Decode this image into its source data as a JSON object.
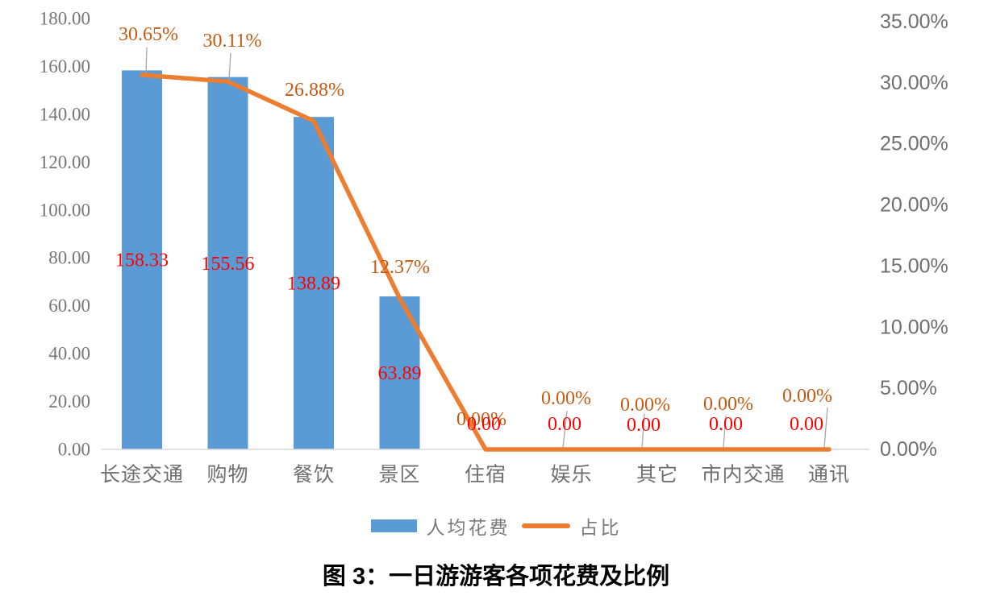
{
  "chart_data": {
    "type": "combo-bar-line",
    "title": "图 3：一日游游客各项花费及比例",
    "categories": [
      "长途交通",
      "购物",
      "餐饮",
      "景区",
      "住宿",
      "娱乐",
      "其它",
      "市内交通",
      "通讯"
    ],
    "series": [
      {
        "name": "人均花费",
        "type": "bar",
        "axis": "left",
        "values": [
          158.33,
          155.56,
          138.89,
          63.89,
          0,
          0,
          0,
          0,
          0
        ],
        "labels": [
          "158.33",
          "155.56",
          "138.89",
          "63.89",
          "0.00",
          "0.00",
          "0.00",
          "0.00",
          "0.00"
        ],
        "color": "#5B9BD5",
        "label_color": "#FF0000"
      },
      {
        "name": "占比",
        "type": "line",
        "axis": "right",
        "values": [
          30.65,
          30.11,
          26.88,
          12.37,
          0,
          0,
          0,
          0,
          0
        ],
        "labels": [
          "30.65%",
          "30.11%",
          "26.88%",
          "12.37%",
          "0.00%",
          "0.00%",
          "0.00%",
          "0.00%",
          "0.00%"
        ],
        "color": "#ED7D31",
        "label_color": "#C55A11"
      }
    ],
    "left_axis": {
      "min": 0,
      "max": 180,
      "step": 20,
      "tick_labels": [
        "0.00",
        "20.00",
        "40.00",
        "60.00",
        "80.00",
        "100.00",
        "120.00",
        "140.00",
        "160.00",
        "180.00"
      ]
    },
    "right_axis": {
      "min": 0,
      "max": 35,
      "step": 5,
      "tick_labels": [
        "0.00%",
        "5.00%",
        "10.00%",
        "15.00%",
        "20.00%",
        "25.00%",
        "30.00%",
        "35.00%"
      ]
    },
    "legend": [
      "人均花费",
      "占比"
    ],
    "legend_position": "bottom",
    "grid": false
  },
  "colors": {
    "bar": "#5B9BD5",
    "line": "#ED7D31",
    "bar_label": "#FF0000",
    "line_label": "#C55A11",
    "axis_text": "#767676",
    "axis_line": "#D9D9D9",
    "leader_line": "#A6A6A6"
  }
}
